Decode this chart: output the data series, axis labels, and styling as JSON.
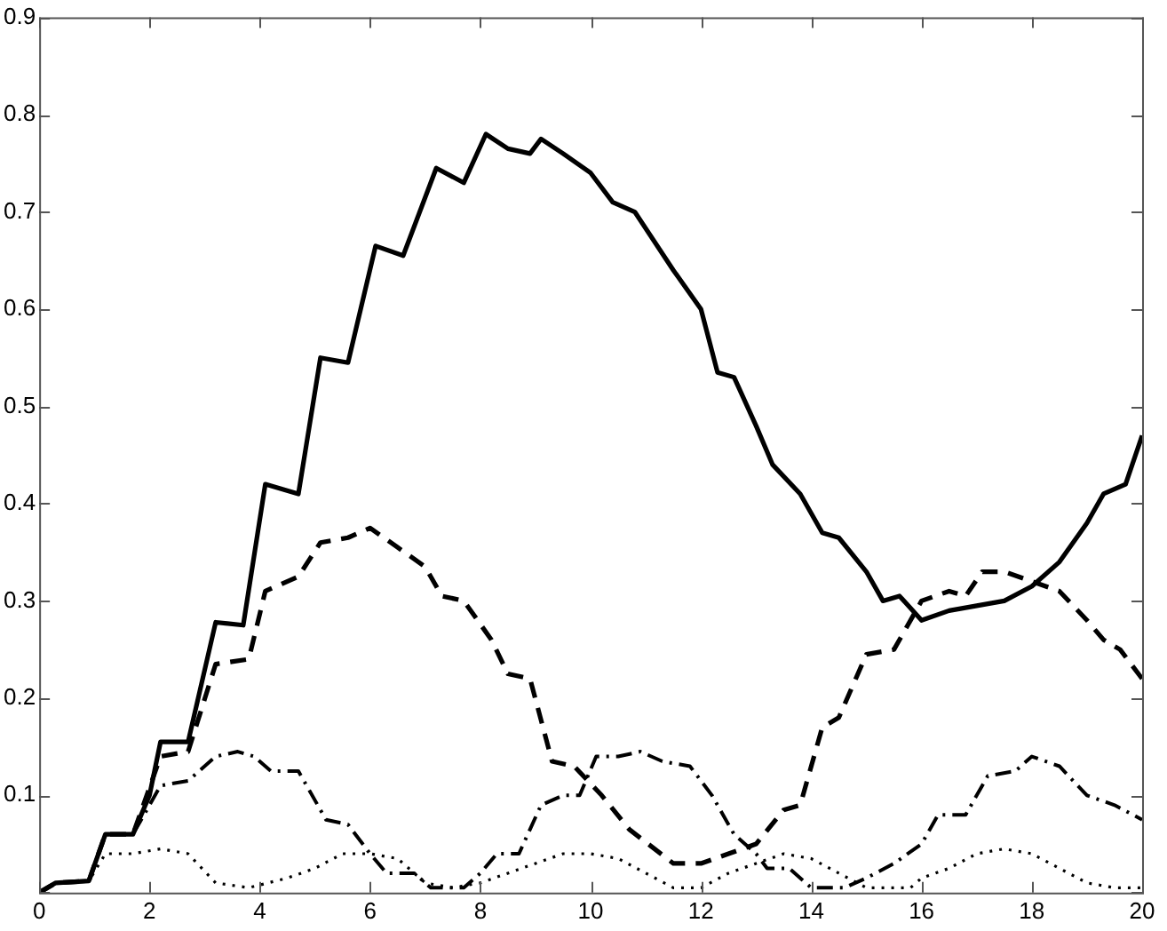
{
  "chart_data": {
    "type": "line",
    "xlim": [
      0,
      20
    ],
    "ylim": [
      0,
      0.9
    ],
    "xticks": [
      0,
      2,
      4,
      6,
      8,
      10,
      12,
      14,
      16,
      18,
      20
    ],
    "yticks": [
      {
        "value": 0,
        "label": null
      },
      0.1,
      0.2,
      0.3,
      0.4,
      0.5,
      0.6,
      0.7,
      0.8,
      0.9
    ],
    "grid": false,
    "legend": false,
    "marker": "none",
    "series": [
      {
        "color": "#000000",
        "line_style": "solid",
        "x": [
          0,
          0.3,
          0.9,
          1.2,
          1.7,
          2.0,
          2.2,
          2.7,
          3.2,
          3.7,
          4.1,
          4.7,
          5.1,
          5.6,
          6.1,
          6.6,
          7.2,
          7.7,
          8.1,
          8.5,
          8.9,
          9.1,
          9.5,
          10,
          10.4,
          10.8,
          11.5,
          12,
          12.3,
          12.6,
          13,
          13.3,
          13.8,
          14.2,
          14.5,
          15,
          15.3,
          15.6,
          16,
          16.5,
          17,
          17.5,
          18,
          18.5,
          19,
          19.3,
          19.7,
          20
        ],
        "values": [
          0,
          0.01,
          0.012,
          0.06,
          0.06,
          0.1,
          0.155,
          0.155,
          0.278,
          0.275,
          0.42,
          0.41,
          0.55,
          0.545,
          0.665,
          0.655,
          0.745,
          0.73,
          0.78,
          0.765,
          0.76,
          0.775,
          0.76,
          0.74,
          0.71,
          0.7,
          0.64,
          0.6,
          0.535,
          0.53,
          0.48,
          0.44,
          0.41,
          0.37,
          0.365,
          0.33,
          0.3,
          0.305,
          0.28,
          0.29,
          0.295,
          0.3,
          0.315,
          0.34,
          0.38,
          0.41,
          0.42,
          0.47
        ]
      },
      {
        "color": "#000000",
        "line_style": "dashed",
        "x": [
          0,
          0.3,
          0.9,
          1.2,
          1.7,
          2.2,
          2.7,
          3.2,
          3.8,
          4.1,
          4.7,
          5.1,
          5.6,
          6,
          6.5,
          7,
          7.3,
          7.7,
          8.2,
          8.5,
          8.9,
          9.3,
          9.7,
          10.2,
          10.7,
          11.5,
          12,
          12.5,
          13,
          13.5,
          13.8,
          14.2,
          14.5,
          15,
          15.5,
          16,
          16.5,
          16.8,
          17.1,
          17.5,
          18,
          18.5,
          19,
          19.3,
          19.6,
          20
        ],
        "values": [
          0,
          0.01,
          0.012,
          0.06,
          0.06,
          0.14,
          0.145,
          0.235,
          0.24,
          0.31,
          0.325,
          0.36,
          0.365,
          0.375,
          0.355,
          0.335,
          0.305,
          0.3,
          0.26,
          0.225,
          0.22,
          0.135,
          0.13,
          0.1,
          0.065,
          0.03,
          0.03,
          0.04,
          0.05,
          0.085,
          0.09,
          0.17,
          0.18,
          0.245,
          0.25,
          0.3,
          0.31,
          0.305,
          0.33,
          0.33,
          0.32,
          0.31,
          0.28,
          0.26,
          0.25,
          0.22
        ]
      },
      {
        "color": "#000000",
        "line_style": "dashdot",
        "x": [
          0,
          0.3,
          0.9,
          1.2,
          1.7,
          2.2,
          2.7,
          3.2,
          3.6,
          3.9,
          4.2,
          4.7,
          5.2,
          5.6,
          6,
          6.3,
          6.8,
          7.1,
          7.7,
          8,
          8.3,
          8.7,
          9.1,
          9.5,
          9.8,
          10.1,
          10.5,
          10.9,
          11.3,
          11.8,
          12.2,
          12.6,
          13,
          13.2,
          13.6,
          14,
          14.6,
          15,
          15.5,
          16,
          16.3,
          16.8,
          17.2,
          17.7,
          18,
          18.5,
          19,
          19.5,
          20
        ],
        "values": [
          0,
          0.01,
          0.012,
          0.06,
          0.06,
          0.11,
          0.115,
          0.14,
          0.145,
          0.14,
          0.125,
          0.125,
          0.075,
          0.07,
          0.04,
          0.02,
          0.02,
          0.005,
          0.005,
          0.02,
          0.04,
          0.04,
          0.09,
          0.1,
          0.1,
          0.14,
          0.14,
          0.145,
          0.135,
          0.13,
          0.1,
          0.06,
          0.04,
          0.025,
          0.025,
          0.005,
          0.005,
          0.015,
          0.03,
          0.05,
          0.08,
          0.08,
          0.12,
          0.125,
          0.14,
          0.13,
          0.1,
          0.09,
          0.075
        ]
      },
      {
        "color": "#000000",
        "line_style": "dotted",
        "x": [
          0,
          0.3,
          0.9,
          1.2,
          1.7,
          2.2,
          2.7,
          3.2,
          3.8,
          4.5,
          5,
          5.5,
          6,
          6.5,
          7,
          7.5,
          8,
          8.5,
          9,
          9.5,
          10,
          10.5,
          11,
          11.5,
          12,
          12.5,
          13,
          13.5,
          14,
          14.5,
          15,
          15.8,
          16,
          16.5,
          17,
          17.5,
          18,
          18.5,
          19,
          19.5,
          20
        ],
        "values": [
          0,
          0.01,
          0.012,
          0.04,
          0.04,
          0.045,
          0.04,
          0.01,
          0.005,
          0.015,
          0.025,
          0.04,
          0.04,
          0.035,
          0.01,
          0.005,
          0.01,
          0.02,
          0.03,
          0.04,
          0.04,
          0.035,
          0.02,
          0.005,
          0.005,
          0.02,
          0.03,
          0.04,
          0.035,
          0.02,
          0.005,
          0.005,
          0.015,
          0.025,
          0.04,
          0.045,
          0.04,
          0.025,
          0.01,
          0.005,
          0.005
        ]
      }
    ]
  }
}
